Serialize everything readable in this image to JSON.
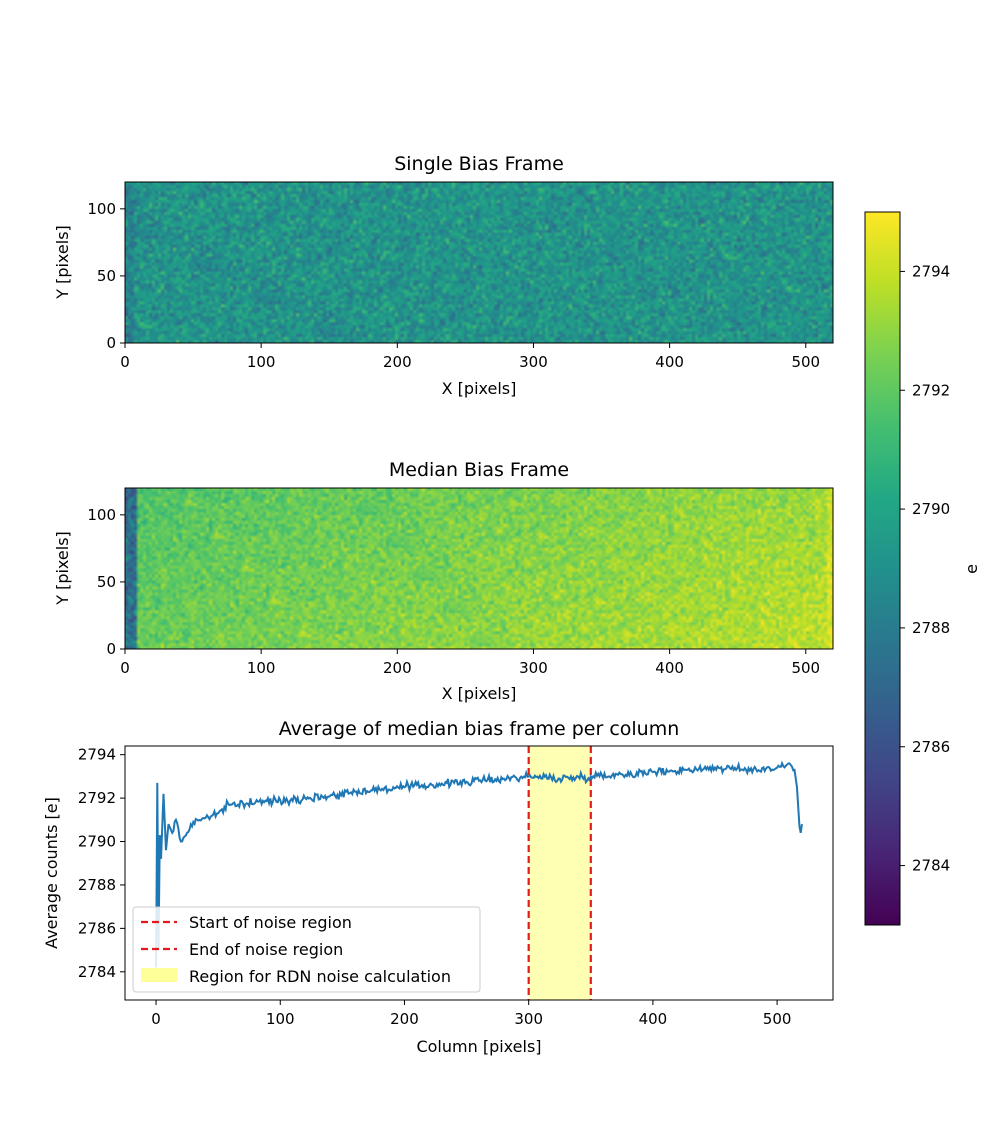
{
  "colors": {
    "line": "#1f77b4",
    "marker_line": "#e31a1c",
    "shade": "#ffff99"
  },
  "chart_data": [
    {
      "type": "heatmap",
      "title": "Single Bias Frame",
      "xlabel": "X [pixels]",
      "ylabel": "Y [pixels]",
      "xlim": [
        0,
        520
      ],
      "ylim": [
        0,
        120
      ],
      "xticks": [
        "0",
        "100",
        "200",
        "300",
        "400",
        "500"
      ],
      "yticks": [
        "0",
        "50",
        "100"
      ],
      "value_mean": 2789.2,
      "value_spread": 1.8,
      "colormap": "viridis"
    },
    {
      "type": "heatmap",
      "title": "Median Bias Frame",
      "xlabel": "X [pixels]",
      "ylabel": "Y [pixels]",
      "xlim": [
        0,
        520
      ],
      "ylim": [
        0,
        120
      ],
      "xticks": [
        "0",
        "100",
        "200",
        "300",
        "400",
        "500"
      ],
      "yticks": [
        "0",
        "50",
        "100"
      ],
      "value_mean": 2792.6,
      "value_spread": 1.2,
      "colormap": "viridis"
    },
    {
      "type": "line",
      "title": "Average of median bias frame per column",
      "xlabel": "Column [pixels]",
      "ylabel": "Average counts [e]",
      "xlim": [
        -25,
        545
      ],
      "ylim": [
        2782.7,
        2794.4
      ],
      "xticks": [
        "0",
        "100",
        "200",
        "300",
        "400",
        "500"
      ],
      "yticks": [
        "2784",
        "2786",
        "2788",
        "2790",
        "2792",
        "2794"
      ],
      "grid": false,
      "legend_position": "lower-left",
      "noise_region": [
        300,
        350
      ],
      "series_points": [
        [
          0,
          2784.2
        ],
        [
          1,
          2792.7
        ],
        [
          2,
          2785.0
        ],
        [
          3,
          2790.3
        ],
        [
          4,
          2789.2
        ],
        [
          6,
          2792.2
        ],
        [
          8,
          2789.6
        ],
        [
          10,
          2790.8
        ],
        [
          13,
          2790.4
        ],
        [
          16,
          2791.0
        ],
        [
          20,
          2790.0
        ],
        [
          25,
          2790.4
        ],
        [
          30,
          2790.9
        ],
        [
          40,
          2791.1
        ],
        [
          50,
          2791.3
        ],
        [
          60,
          2791.7
        ],
        [
          80,
          2791.8
        ],
        [
          100,
          2791.9
        ],
        [
          120,
          2792.0
        ],
        [
          140,
          2792.1
        ],
        [
          160,
          2792.3
        ],
        [
          180,
          2792.4
        ],
        [
          200,
          2792.5
        ],
        [
          220,
          2792.6
        ],
        [
          240,
          2792.7
        ],
        [
          260,
          2792.8
        ],
        [
          280,
          2792.9
        ],
        [
          300,
          2793.0
        ],
        [
          325,
          2792.9
        ],
        [
          350,
          2793.0
        ],
        [
          375,
          2793.1
        ],
        [
          400,
          2793.2
        ],
        [
          425,
          2793.3
        ],
        [
          450,
          2793.4
        ],
        [
          475,
          2793.3
        ],
        [
          500,
          2793.4
        ],
        [
          510,
          2793.6
        ],
        [
          514,
          2793.3
        ],
        [
          516,
          2792.5
        ],
        [
          518,
          2790.7
        ],
        [
          519,
          2790.4
        ],
        [
          520,
          2790.8
        ]
      ],
      "series_noise": 0.18,
      "legend": [
        {
          "label": "Start of noise region",
          "style": "dashed-red"
        },
        {
          "label": "End of noise region",
          "style": "dashed-red"
        },
        {
          "label": "Region for RDN noise calculation",
          "style": "yellow-patch"
        }
      ]
    }
  ],
  "colorbar": {
    "label": "e",
    "min": 2783.0,
    "max": 2795.0,
    "ticks": [
      "2784",
      "2786",
      "2788",
      "2790",
      "2792",
      "2794"
    ]
  }
}
